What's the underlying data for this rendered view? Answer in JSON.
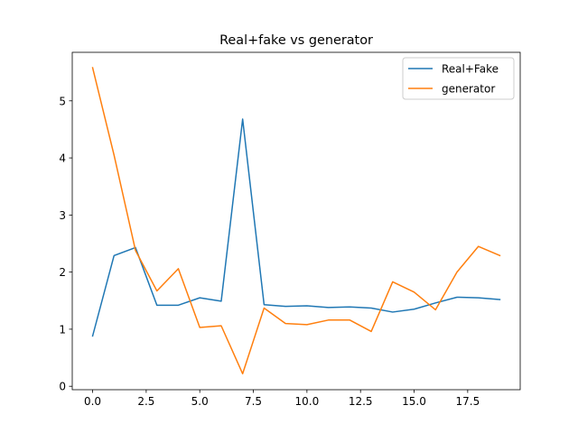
{
  "chart_data": {
    "type": "line",
    "title": "Real+fake vs generator",
    "xlabel": "",
    "ylabel": "",
    "xlim": [
      -0.95,
      19.95
    ],
    "ylim": [
      -0.06,
      5.85
    ],
    "xticks": [
      0.0,
      2.5,
      5.0,
      7.5,
      10.0,
      12.5,
      15.0,
      17.5
    ],
    "xtick_labels": [
      "0.0",
      "2.5",
      "5.0",
      "7.5",
      "10.0",
      "12.5",
      "15.0",
      "17.5"
    ],
    "yticks": [
      0,
      1,
      2,
      3,
      4,
      5
    ],
    "ytick_labels": [
      "0",
      "1",
      "2",
      "3",
      "4",
      "5"
    ],
    "grid": false,
    "legend_position": "top-right",
    "x": [
      0,
      1,
      2,
      3,
      4,
      5,
      6,
      7,
      8,
      9,
      10,
      11,
      12,
      13,
      14,
      15,
      16,
      17,
      18,
      19
    ],
    "series": [
      {
        "name": "Real+Fake",
        "color": "#1f77b4",
        "values": [
          0.88,
          2.29,
          2.43,
          1.42,
          1.42,
          1.55,
          1.49,
          4.68,
          1.43,
          1.4,
          1.41,
          1.38,
          1.39,
          1.37,
          1.3,
          1.35,
          1.46,
          1.56,
          1.55,
          1.52
        ]
      },
      {
        "name": "generator",
        "color": "#ff7f0e",
        "values": [
          5.58,
          4.05,
          2.38,
          1.67,
          2.06,
          1.03,
          1.06,
          0.22,
          1.37,
          1.1,
          1.08,
          1.16,
          1.16,
          0.96,
          1.83,
          1.65,
          1.34,
          2.0,
          2.45,
          2.29
        ]
      }
    ]
  }
}
